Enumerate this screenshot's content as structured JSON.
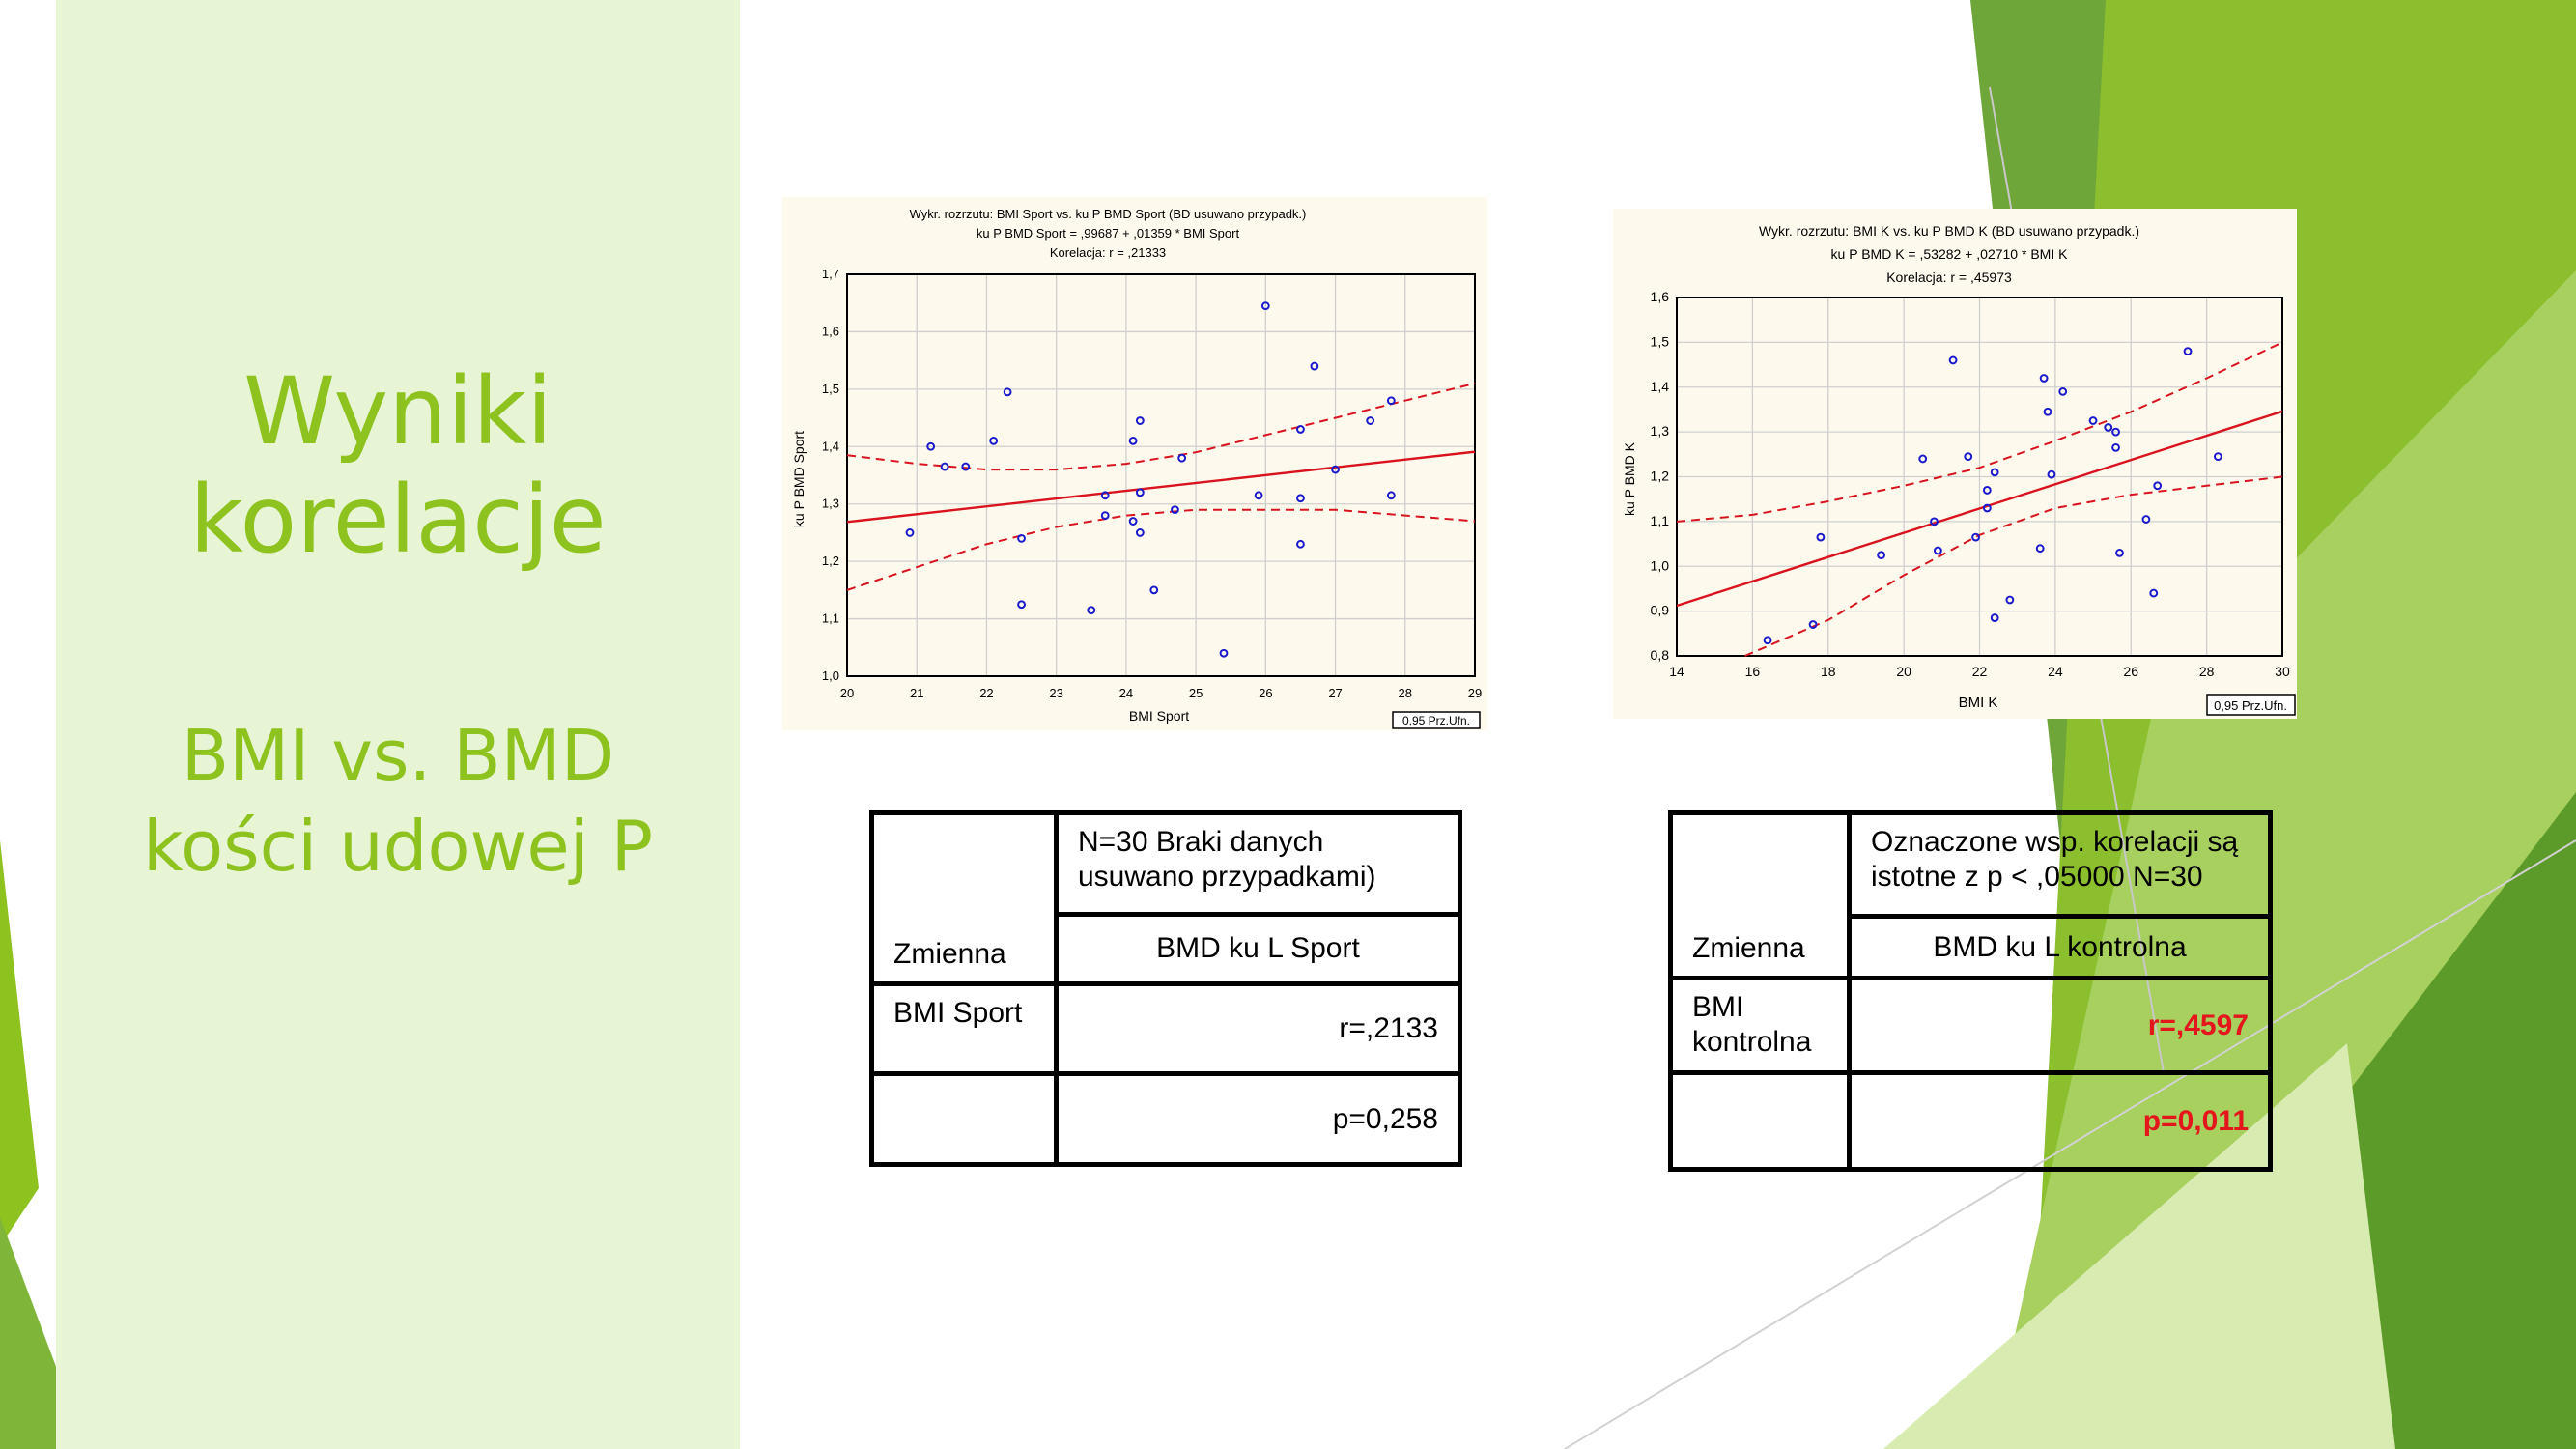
{
  "slide": {
    "title_line1": "Wyniki",
    "title_line2": "korelacje",
    "subtitle_line1": "BMI vs. BMD",
    "subtitle_line2": "kości udowej P"
  },
  "colors": {
    "accent": "#8dc21f",
    "panel": "#e8f5d5",
    "chart_bg": "#fdf9ec",
    "points": "#1a1acc",
    "fit_line": "#d9141e",
    "significant": "#e3161b"
  },
  "chart_data": [
    {
      "type": "scatter",
      "title": "Wykr. rozrzutu: BMI Sport vs. ku P BMD Sport (BD usuwano przypadk.)",
      "subtitle": "ku P BMD Sport = ,99687 + ,01359 * BMI Sport",
      "subtitle2": "Korelacja: r =   ,21333",
      "xlabel": "BMI Sport",
      "ylabel": "ku P BMD Sport",
      "xlim": [
        20,
        29
      ],
      "ylim": [
        1.0,
        1.7
      ],
      "xticks": [
        "20",
        "21",
        "22",
        "23",
        "24",
        "25",
        "26",
        "27",
        "28",
        "29"
      ],
      "yticks": [
        "1,0",
        "1,1",
        "1,2",
        "1,3",
        "1,4",
        "1,5",
        "1,6",
        "1,7"
      ],
      "grid": true,
      "legend": "0,95 Prz.Ufn.",
      "fit": {
        "intercept": 0.99687,
        "slope": 0.01359
      },
      "ci_upper": [
        [
          20,
          1.385
        ],
        [
          21,
          1.37
        ],
        [
          22,
          1.36
        ],
        [
          23,
          1.36
        ],
        [
          24,
          1.37
        ],
        [
          25,
          1.39
        ],
        [
          26,
          1.42
        ],
        [
          27,
          1.45
        ],
        [
          28,
          1.48
        ],
        [
          29,
          1.51
        ]
      ],
      "ci_lower": [
        [
          20,
          1.15
        ],
        [
          21,
          1.19
        ],
        [
          22,
          1.23
        ],
        [
          23,
          1.26
        ],
        [
          24,
          1.28
        ],
        [
          25,
          1.29
        ],
        [
          26,
          1.29
        ],
        [
          27,
          1.29
        ],
        [
          28,
          1.28
        ],
        [
          29,
          1.27
        ]
      ],
      "points": [
        [
          20.9,
          1.25
        ],
        [
          21.2,
          1.4
        ],
        [
          21.4,
          1.365
        ],
        [
          21.7,
          1.365
        ],
        [
          22.1,
          1.41
        ],
        [
          22.3,
          1.495
        ],
        [
          22.5,
          1.24
        ],
        [
          22.5,
          1.125
        ],
        [
          23.5,
          1.115
        ],
        [
          23.7,
          1.315
        ],
        [
          23.7,
          1.28
        ],
        [
          24.1,
          1.27
        ],
        [
          24.1,
          1.41
        ],
        [
          24.2,
          1.445
        ],
        [
          24.2,
          1.32
        ],
        [
          24.2,
          1.25
        ],
        [
          24.4,
          1.15
        ],
        [
          24.7,
          1.29
        ],
        [
          24.8,
          1.38
        ],
        [
          25.4,
          1.04
        ],
        [
          25.9,
          1.315
        ],
        [
          26.0,
          1.645
        ],
        [
          26.5,
          1.43
        ],
        [
          26.5,
          1.31
        ],
        [
          26.5,
          1.23
        ],
        [
          26.7,
          1.54
        ],
        [
          27.0,
          1.36
        ],
        [
          27.5,
          1.445
        ],
        [
          27.8,
          1.48
        ],
        [
          27.8,
          1.315
        ]
      ]
    },
    {
      "type": "scatter",
      "title": "Wykr. rozrzutu: BMI  K vs. ku P BMD  K (BD usuwano przypadk.)",
      "subtitle": "ku P BMD  K = ,53282 + ,02710 * BMI  K",
      "subtitle2": "Korelacja: r =   ,45973",
      "xlabel": "BMI  K",
      "ylabel": "ku P BMD  K",
      "xlim": [
        14,
        30
      ],
      "ylim": [
        0.8,
        1.6
      ],
      "xticks": [
        "14",
        "16",
        "18",
        "20",
        "22",
        "24",
        "26",
        "28",
        "30"
      ],
      "yticks": [
        "0,8",
        "0,9",
        "1,0",
        "1,1",
        "1,2",
        "1,3",
        "1,4",
        "1,5",
        "1,6"
      ],
      "grid": true,
      "legend": "0,95 Prz.Ufn.",
      "fit": {
        "intercept": 0.53282,
        "slope": 0.0271
      },
      "ci_upper": [
        [
          14,
          1.1
        ],
        [
          16,
          1.115
        ],
        [
          18,
          1.145
        ],
        [
          20,
          1.18
        ],
        [
          22,
          1.22
        ],
        [
          24,
          1.28
        ],
        [
          26,
          1.345
        ],
        [
          28,
          1.42
        ],
        [
          30,
          1.5
        ]
      ],
      "ci_lower": [
        [
          15.8,
          0.8
        ],
        [
          18,
          0.88
        ],
        [
          20,
          0.98
        ],
        [
          22,
          1.07
        ],
        [
          24,
          1.13
        ],
        [
          26,
          1.16
        ],
        [
          28,
          1.18
        ],
        [
          30,
          1.2
        ]
      ],
      "points": [
        [
          16.4,
          0.835
        ],
        [
          17.6,
          0.87
        ],
        [
          17.8,
          1.065
        ],
        [
          19.4,
          1.025
        ],
        [
          20.5,
          1.24
        ],
        [
          20.9,
          1.035
        ],
        [
          20.8,
          1.1
        ],
        [
          21.3,
          1.46
        ],
        [
          21.7,
          1.245
        ],
        [
          21.9,
          1.065
        ],
        [
          22.2,
          1.17
        ],
        [
          22.2,
          1.13
        ],
        [
          22.4,
          0.885
        ],
        [
          22.4,
          1.21
        ],
        [
          22.8,
          0.925
        ],
        [
          23.6,
          1.04
        ],
        [
          23.7,
          1.42
        ],
        [
          23.8,
          1.345
        ],
        [
          23.9,
          1.205
        ],
        [
          24.2,
          1.39
        ],
        [
          25.0,
          1.325
        ],
        [
          25.4,
          1.31
        ],
        [
          25.6,
          1.3
        ],
        [
          25.6,
          1.265
        ],
        [
          25.7,
          1.03
        ],
        [
          26.4,
          1.105
        ],
        [
          26.6,
          0.94
        ],
        [
          26.7,
          1.18
        ],
        [
          27.5,
          1.48
        ],
        [
          28.3,
          1.245
        ]
      ]
    }
  ],
  "table1": {
    "header": "N=30  Braki danych usuwano przypadkami)",
    "var_label": "Zmienna",
    "col_label": "BMD  ku L Sport",
    "row_label": "BMI Sport",
    "r_value": "r=,2133",
    "p_value": "p=0,258"
  },
  "table2": {
    "header": "Oznaczone wsp. korelacji są istotne  z p < ,05000 N=30",
    "var_label": "Zmienna",
    "col_label": "BMD  ku L kontrolna",
    "row_label_1": "BMI",
    "row_label_2": "kontrolna",
    "r_value": "r=,4597",
    "p_value": "p=0,011"
  }
}
